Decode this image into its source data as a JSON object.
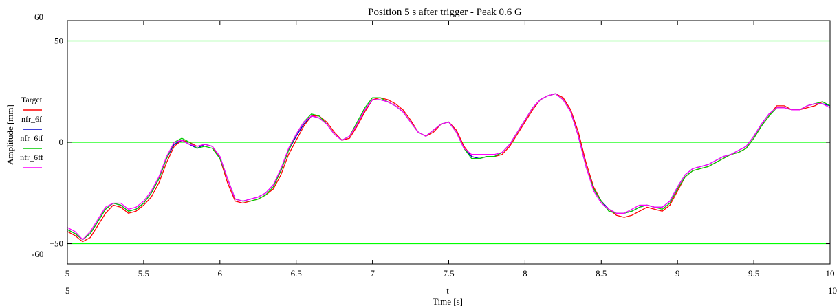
{
  "chart_data": {
    "type": "line",
    "title": "Position 5 s after trigger - Peak 0.6 G",
    "xlabel": "Time [s]",
    "xvar_label": "t",
    "ylabel": "Amplitude [mm]",
    "xlim": [
      5,
      10
    ],
    "ylim": [
      -60,
      60
    ],
    "x_range_labels": [
      "5",
      "10"
    ],
    "y_range_labels": [
      "60",
      "-60"
    ],
    "x_ticks": [
      5,
      5.5,
      6,
      6.5,
      7,
      7.5,
      8,
      8.5,
      9,
      9.5,
      10
    ],
    "x_tick_labels": [
      "5",
      "5.5",
      "6",
      "6.5",
      "7",
      "7.5",
      "8",
      "8.5",
      "9",
      "9.5",
      "10"
    ],
    "y_ticks": [
      -50,
      0,
      50
    ],
    "y_tick_labels": [
      "−50",
      "0",
      "50"
    ],
    "gridlines_y": [
      -50,
      0,
      50
    ],
    "grid_color": "#00ff00",
    "legend_position": "left",
    "series": [
      {
        "name": "Target",
        "color": "#ff0000",
        "x": [
          5.0,
          5.05,
          5.1,
          5.15,
          5.2,
          5.25,
          5.3,
          5.35,
          5.4,
          5.45,
          5.5,
          5.55,
          5.6,
          5.65,
          5.7,
          5.75,
          5.8,
          5.85,
          5.9,
          5.95,
          6.0,
          6.05,
          6.1,
          6.15,
          6.2,
          6.25,
          6.3,
          6.35,
          6.4,
          6.45,
          6.5,
          6.55,
          6.6,
          6.65,
          6.7,
          6.75,
          6.8,
          6.85,
          6.9,
          6.95,
          7.0,
          7.05,
          7.1,
          7.15,
          7.2,
          7.25,
          7.3,
          7.35,
          7.4,
          7.45,
          7.5,
          7.55,
          7.6,
          7.65,
          7.7,
          7.75,
          7.8,
          7.85,
          7.9,
          7.95,
          8.0,
          8.05,
          8.1,
          8.15,
          8.2,
          8.25,
          8.3,
          8.35,
          8.4,
          8.45,
          8.5,
          8.55,
          8.6,
          8.65,
          8.7,
          8.75,
          8.8,
          8.85,
          8.9,
          8.95,
          9.0,
          9.05,
          9.1,
          9.15,
          9.2,
          9.25,
          9.3,
          9.35,
          9.4,
          9.45,
          9.5,
          9.55,
          9.6,
          9.65,
          9.7,
          9.75,
          9.8,
          9.85,
          9.9,
          9.95,
          10.0
        ],
        "y": [
          -44,
          -46,
          -49,
          -47,
          -41,
          -35,
          -31,
          -32,
          -35,
          -34,
          -31,
          -27,
          -20,
          -10,
          -2,
          1,
          0,
          -2,
          -1,
          -2,
          -8,
          -20,
          -29,
          -30,
          -29,
          -28,
          -26,
          -23,
          -16,
          -6,
          1,
          8,
          13,
          13,
          10,
          5,
          1,
          2,
          8,
          15,
          21,
          22,
          21,
          19,
          16,
          11,
          5,
          3,
          5,
          9,
          10,
          6,
          -2,
          -7,
          -8,
          -7,
          -7,
          -6,
          -2,
          4,
          10,
          16,
          21,
          23,
          24,
          22,
          16,
          5,
          -10,
          -22,
          -29,
          -33,
          -36,
          -37,
          -36,
          -34,
          -32,
          -33,
          -34,
          -31,
          -24,
          -17,
          -14,
          -13,
          -12,
          -10,
          -8,
          -6,
          -5,
          -3,
          2,
          8,
          13,
          18,
          18,
          16,
          16,
          17,
          18,
          20,
          18
        ]
      },
      {
        "name": "nfr_6f",
        "color": "#0000cc",
        "x": [
          5.0,
          5.05,
          5.1,
          5.15,
          5.2,
          5.25,
          5.3,
          5.35,
          5.4,
          5.45,
          5.5,
          5.55,
          5.6,
          5.65,
          5.7,
          5.75,
          5.8,
          5.85,
          5.9,
          5.95,
          6.0,
          6.05,
          6.1,
          6.15,
          6.2,
          6.25,
          6.3,
          6.35,
          6.4,
          6.45,
          6.5,
          6.55,
          6.6,
          6.65,
          6.7,
          6.75,
          6.8,
          6.85,
          6.9,
          6.95,
          7.0,
          7.05,
          7.1,
          7.15,
          7.2,
          7.25,
          7.3,
          7.35,
          7.4,
          7.45,
          7.5,
          7.55,
          7.6,
          7.65,
          7.7,
          7.75,
          7.8,
          7.85,
          7.9,
          7.95,
          8.0,
          8.05,
          8.1,
          8.15,
          8.2,
          8.25,
          8.3,
          8.35,
          8.4,
          8.45,
          8.5,
          8.55,
          8.6,
          8.65,
          8.7,
          8.75,
          8.8,
          8.85,
          8.9,
          8.95,
          9.0,
          9.05,
          9.1,
          9.15,
          9.2,
          9.25,
          9.3,
          9.35,
          9.4,
          9.45,
          9.5,
          9.55,
          9.6,
          9.65,
          9.7,
          9.75,
          9.8,
          9.85,
          9.9,
          9.95,
          10.0
        ],
        "y": [
          -43,
          -45,
          -48,
          -45,
          -39,
          -33,
          -30,
          -31,
          -34,
          -33,
          -30,
          -25,
          -18,
          -8,
          -1,
          1,
          -1,
          -3,
          -1,
          -2,
          -7,
          -18,
          -28,
          -29,
          -28,
          -27,
          -25,
          -21,
          -14,
          -4,
          3,
          9,
          13,
          12,
          9,
          4,
          1,
          3,
          9,
          16,
          21,
          21,
          20,
          18,
          15,
          10,
          5,
          3,
          6,
          9,
          10,
          5,
          -3,
          -7,
          -8,
          -7,
          -7,
          -5,
          -1,
          5,
          11,
          17,
          21,
          23,
          24,
          21,
          15,
          3,
          -12,
          -23,
          -29,
          -33,
          -35,
          -35,
          -34,
          -32,
          -31,
          -32,
          -32,
          -29,
          -22,
          -16,
          -13,
          -12,
          -11,
          -9,
          -7,
          -6,
          -4,
          -2,
          3,
          9,
          14,
          17,
          17,
          16,
          16,
          18,
          19,
          19,
          18
        ]
      },
      {
        "name": "nfr_6tf",
        "color": "#00cc00",
        "x": [
          5.0,
          5.05,
          5.1,
          5.15,
          5.2,
          5.25,
          5.3,
          5.35,
          5.4,
          5.45,
          5.5,
          5.55,
          5.6,
          5.65,
          5.7,
          5.75,
          5.8,
          5.85,
          5.9,
          5.95,
          6.0,
          6.05,
          6.1,
          6.15,
          6.2,
          6.25,
          6.3,
          6.35,
          6.4,
          6.45,
          6.5,
          6.55,
          6.6,
          6.65,
          6.7,
          6.75,
          6.8,
          6.85,
          6.9,
          6.95,
          7.0,
          7.05,
          7.1,
          7.15,
          7.2,
          7.25,
          7.3,
          7.35,
          7.4,
          7.45,
          7.5,
          7.55,
          7.6,
          7.65,
          7.7,
          7.75,
          7.8,
          7.85,
          7.9,
          7.95,
          8.0,
          8.05,
          8.1,
          8.15,
          8.2,
          8.25,
          8.3,
          8.35,
          8.4,
          8.45,
          8.5,
          8.55,
          8.6,
          8.65,
          8.7,
          8.75,
          8.8,
          8.85,
          8.9,
          8.95,
          9.0,
          9.05,
          9.1,
          9.15,
          9.2,
          9.25,
          9.3,
          9.35,
          9.4,
          9.45,
          9.5,
          9.55,
          9.6,
          9.65,
          9.7,
          9.75,
          9.8,
          9.85,
          9.9,
          9.95,
          10.0
        ],
        "y": [
          -43,
          -45,
          -48,
          -45,
          -39,
          -33,
          -30,
          -31,
          -34,
          -33,
          -30,
          -25,
          -18,
          -8,
          0,
          2,
          0,
          -3,
          -2,
          -3,
          -8,
          -18,
          -28,
          -29,
          -29,
          -28,
          -26,
          -22,
          -14,
          -4,
          4,
          10,
          14,
          13,
          9,
          4,
          1,
          3,
          10,
          17,
          22,
          22,
          20,
          18,
          15,
          10,
          5,
          3,
          6,
          9,
          10,
          5,
          -3,
          -8,
          -8,
          -7,
          -7,
          -5,
          -1,
          5,
          11,
          17,
          21,
          23,
          24,
          21,
          15,
          3,
          -12,
          -23,
          -29,
          -34,
          -35,
          -35,
          -34,
          -32,
          -31,
          -32,
          -33,
          -30,
          -23,
          -17,
          -14,
          -13,
          -12,
          -10,
          -8,
          -6,
          -5,
          -3,
          2,
          8,
          13,
          17,
          17,
          16,
          16,
          18,
          19,
          20,
          18
        ]
      },
      {
        "name": "nfr_6ff",
        "color": "#ff00ff",
        "x": [
          5.0,
          5.05,
          5.1,
          5.15,
          5.2,
          5.25,
          5.3,
          5.35,
          5.4,
          5.45,
          5.5,
          5.55,
          5.6,
          5.65,
          5.7,
          5.75,
          5.8,
          5.85,
          5.9,
          5.95,
          6.0,
          6.05,
          6.1,
          6.15,
          6.2,
          6.25,
          6.3,
          6.35,
          6.4,
          6.45,
          6.5,
          6.55,
          6.6,
          6.65,
          6.7,
          6.75,
          6.8,
          6.85,
          6.9,
          6.95,
          7.0,
          7.05,
          7.1,
          7.15,
          7.2,
          7.25,
          7.3,
          7.35,
          7.4,
          7.45,
          7.5,
          7.55,
          7.6,
          7.65,
          7.7,
          7.75,
          7.8,
          7.85,
          7.9,
          7.95,
          8.0,
          8.05,
          8.1,
          8.15,
          8.2,
          8.25,
          8.3,
          8.35,
          8.4,
          8.45,
          8.5,
          8.55,
          8.6,
          8.65,
          8.7,
          8.75,
          8.8,
          8.85,
          8.9,
          8.95,
          9.0,
          9.05,
          9.1,
          9.15,
          9.2,
          9.25,
          9.3,
          9.35,
          9.4,
          9.45,
          9.5,
          9.55,
          9.6,
          9.65,
          9.7,
          9.75,
          9.8,
          9.85,
          9.9,
          9.95,
          10.0
        ],
        "y": [
          -42,
          -44,
          -48,
          -44,
          -38,
          -32,
          -30,
          -30,
          -33,
          -32,
          -29,
          -24,
          -17,
          -7,
          0,
          1,
          -1,
          -2,
          -1,
          -2,
          -7,
          -18,
          -28,
          -29,
          -28,
          -27,
          -25,
          -21,
          -13,
          -3,
          4,
          10,
          13,
          12,
          9,
          4,
          1,
          3,
          9,
          16,
          21,
          21,
          20,
          18,
          15,
          10,
          5,
          3,
          6,
          9,
          10,
          5,
          -3,
          -6,
          -6,
          -6,
          -6,
          -5,
          -1,
          5,
          11,
          17,
          21,
          23,
          24,
          21,
          15,
          3,
          -12,
          -24,
          -30,
          -33,
          -35,
          -35,
          -33,
          -31,
          -31,
          -32,
          -32,
          -29,
          -22,
          -16,
          -13,
          -12,
          -11,
          -9,
          -7,
          -6,
          -4,
          -2,
          3,
          9,
          14,
          17,
          17,
          16,
          16,
          18,
          19,
          19,
          17
        ]
      }
    ]
  }
}
